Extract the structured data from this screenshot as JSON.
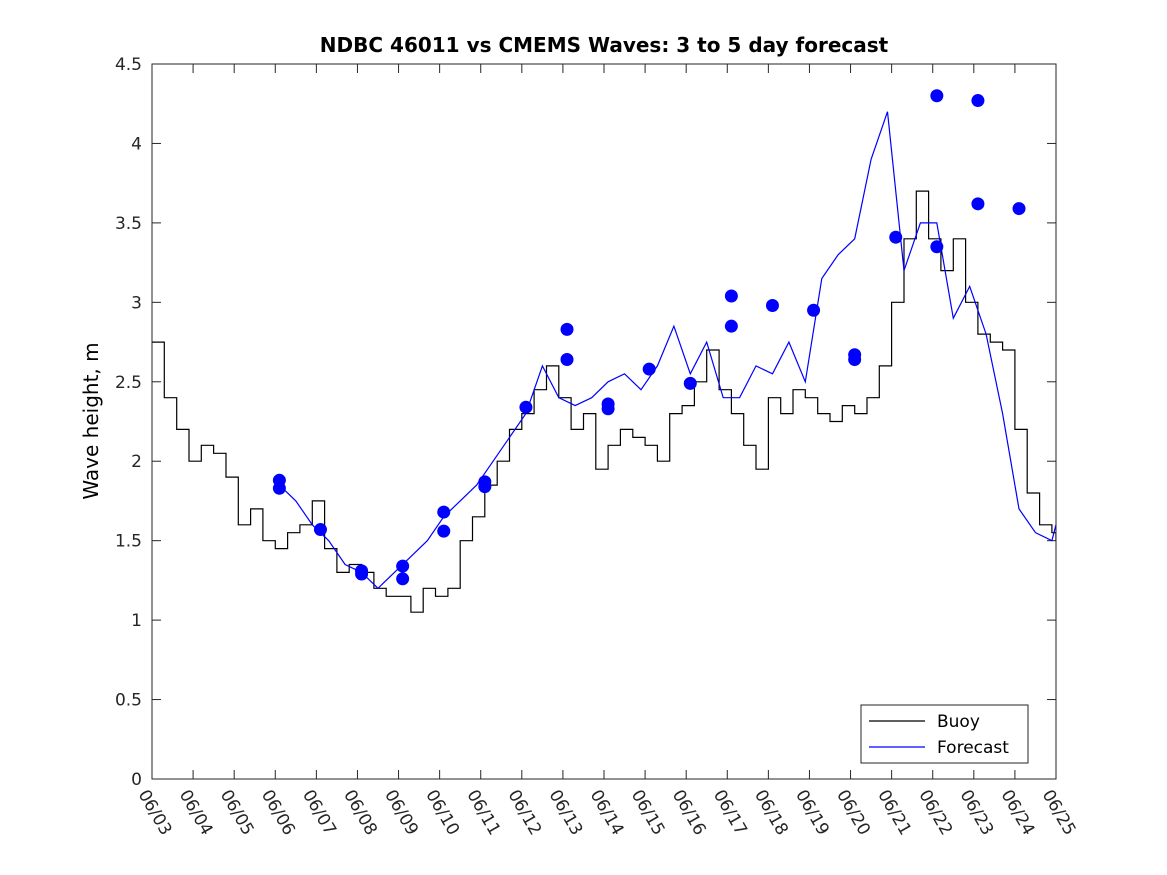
{
  "chart_data": {
    "type": "line",
    "title": "NDBC 46011 vs CMEMS Waves: 3 to 5 day forecast",
    "xlabel": "",
    "ylabel": "Wave height, m",
    "ylim": [
      0,
      4.5
    ],
    "xlim": [
      0,
      22
    ],
    "x_ticks": [
      "06/03",
      "06/04",
      "06/05",
      "06/06",
      "06/07",
      "06/08",
      "06/09",
      "06/10",
      "06/11",
      "06/12",
      "06/13",
      "06/14",
      "06/15",
      "06/16",
      "06/17",
      "06/18",
      "06/19",
      "06/20",
      "06/21",
      "06/22",
      "06/23",
      "06/24",
      "06/25"
    ],
    "y_ticks": [
      "0",
      "0.5",
      "1",
      "1.5",
      "2",
      "2.5",
      "3",
      "3.5",
      "4",
      "4.5"
    ],
    "grid": false,
    "legend_position": "bottom-right",
    "colors": {
      "buoy": "#000000",
      "forecast": "#0000ff"
    },
    "series": [
      {
        "name": "Buoy",
        "key": "buoy",
        "x": [
          0,
          0.3,
          0.6,
          0.9,
          1.2,
          1.5,
          1.8,
          2.1,
          2.4,
          2.7,
          3.0,
          3.3,
          3.6,
          3.9,
          4.2,
          4.5,
          4.8,
          5.1,
          5.4,
          5.7,
          6.0,
          6.3,
          6.6,
          6.9,
          7.2,
          7.5,
          7.8,
          8.1,
          8.4,
          8.7,
          9.0,
          9.3,
          9.6,
          9.9,
          10.2,
          10.5,
          10.8,
          11.1,
          11.4,
          11.7,
          12.0,
          12.3,
          12.6,
          12.9,
          13.2,
          13.5,
          13.8,
          14.1,
          14.4,
          14.7,
          15.0,
          15.3,
          15.6,
          15.9,
          16.2,
          16.5,
          16.8,
          17.1,
          17.4,
          17.7,
          18.0,
          18.3,
          18.6,
          18.9,
          19.2,
          19.5,
          19.8,
          20.1,
          20.4,
          20.7,
          21.0,
          21.3,
          21.6,
          21.9,
          22.0
        ],
        "y": [
          2.75,
          2.4,
          2.2,
          2.0,
          2.1,
          2.05,
          1.9,
          1.6,
          1.7,
          1.5,
          1.45,
          1.55,
          1.6,
          1.75,
          1.45,
          1.3,
          1.35,
          1.3,
          1.2,
          1.15,
          1.15,
          1.05,
          1.2,
          1.15,
          1.2,
          1.5,
          1.65,
          1.85,
          2.0,
          2.2,
          2.3,
          2.45,
          2.6,
          2.4,
          2.2,
          2.3,
          1.95,
          2.1,
          2.2,
          2.15,
          2.1,
          2.0,
          2.3,
          2.35,
          2.5,
          2.7,
          2.45,
          2.3,
          2.1,
          1.95,
          2.4,
          2.3,
          2.45,
          2.4,
          2.3,
          2.25,
          2.35,
          2.3,
          2.4,
          2.6,
          3.0,
          3.4,
          3.7,
          3.4,
          3.2,
          3.4,
          3.0,
          2.8,
          2.75,
          2.7,
          2.2,
          1.8,
          1.6,
          1.55,
          1.5
        ]
      },
      {
        "name": "Forecast",
        "key": "forecast",
        "x": [
          3.1,
          3.5,
          3.9,
          4.3,
          4.7,
          5.1,
          5.5,
          5.9,
          6.3,
          6.7,
          7.1,
          7.5,
          7.9,
          8.3,
          8.7,
          9.1,
          9.5,
          9.9,
          10.3,
          10.7,
          11.1,
          11.5,
          11.9,
          12.3,
          12.7,
          13.1,
          13.5,
          13.9,
          14.3,
          14.7,
          15.1,
          15.5,
          15.9,
          16.3,
          16.7,
          17.1,
          17.5,
          17.9,
          18.3,
          18.7,
          19.1,
          19.5,
          19.9,
          20.3,
          20.7,
          21.1,
          21.5,
          21.9,
          22.0
        ],
        "y": [
          1.85,
          1.75,
          1.6,
          1.5,
          1.35,
          1.3,
          1.2,
          1.3,
          1.4,
          1.5,
          1.65,
          1.75,
          1.85,
          2.0,
          2.15,
          2.3,
          2.6,
          2.4,
          2.35,
          2.4,
          2.5,
          2.55,
          2.45,
          2.6,
          2.85,
          2.55,
          2.75,
          2.4,
          2.4,
          2.6,
          2.55,
          2.75,
          2.5,
          3.15,
          3.3,
          3.4,
          3.9,
          4.2,
          3.2,
          3.5,
          3.5,
          2.9,
          3.1,
          2.8,
          2.3,
          1.7,
          1.55,
          1.5,
          1.6
        ]
      }
    ],
    "forecast_markers": {
      "x": [
        3.1,
        3.1,
        4.1,
        5.1,
        5.1,
        6.1,
        6.1,
        7.1,
        7.1,
        8.1,
        8.1,
        9.1,
        10.1,
        10.1,
        11.1,
        11.1,
        12.1,
        13.1,
        14.1,
        14.1,
        15.1,
        16.1,
        17.1,
        17.1,
        18.1,
        19.1,
        19.1,
        20.1,
        20.1,
        21.1
      ],
      "y": [
        1.88,
        1.83,
        1.57,
        1.31,
        1.29,
        1.34,
        1.26,
        1.68,
        1.56,
        1.87,
        1.84,
        2.34,
        2.83,
        2.64,
        2.36,
        2.33,
        2.58,
        2.49,
        3.04,
        2.85,
        2.98,
        2.95,
        2.67,
        2.64,
        3.41,
        3.35,
        4.3,
        4.27,
        3.62,
        3.59
      ]
    }
  }
}
